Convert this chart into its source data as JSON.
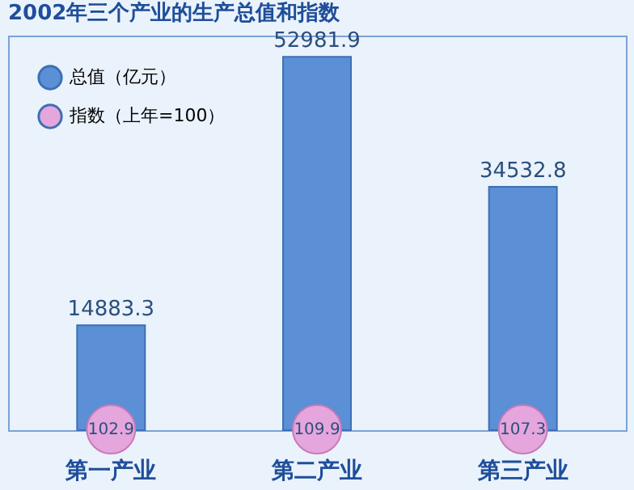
{
  "chart_data": {
    "type": "bar",
    "title": "2002年三个产业的生产总值和指数",
    "categories": [
      "第一产业",
      "第二产业",
      "第三产业"
    ],
    "series": [
      {
        "name": "总值（亿元）",
        "color": "#5b8fd6",
        "values": [
          14883.3,
          52981.9,
          34532.8
        ]
      },
      {
        "name": "指数（上年=100）",
        "type": "scatter",
        "color": "#e4a6dc",
        "values": [
          102.9,
          109.9,
          107.3
        ]
      }
    ],
    "ylim": [
      0,
      56000
    ],
    "tick_labels": "x",
    "data_labels": true,
    "grid": false,
    "legend": "top left",
    "marker": "circle"
  }
}
